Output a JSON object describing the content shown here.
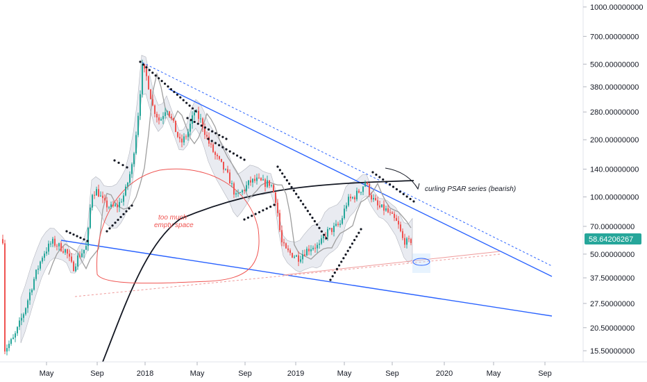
{
  "chart_data": {
    "type": "candlestick",
    "y_scale": "log",
    "ylim": [
      13.5,
      1100
    ],
    "price_axis": {
      "ticks": [
        1000,
        700,
        500,
        380,
        280,
        200,
        140,
        100,
        70,
        50,
        37.5,
        27.5,
        20.5,
        15.5
      ],
      "labels": [
        "1000.00000000",
        "700.00000000",
        "500.00000000",
        "380.00000000",
        "280.00000000",
        "200.00000000",
        "140.00000000",
        "100.00000000",
        "70.00000000",
        "50.00000000",
        "37.50000000",
        "27.50000000",
        "20.50000000",
        "15.50000000"
      ]
    },
    "time_axis": {
      "labels": [
        "May",
        "Sep",
        "2018",
        "May",
        "Sep",
        "2019",
        "May",
        "Sep",
        "2020",
        "May",
        "Sep"
      ]
    },
    "current_price": {
      "value": 58.64206267,
      "label": "58.64206267",
      "color": "#26a69a"
    },
    "annotations": [
      {
        "text": "too much",
        "color": "#ef5350"
      },
      {
        "text": "empty space",
        "color": "#ef5350"
      },
      {
        "text": "curling PSAR series (bearish)",
        "color": "#131722"
      }
    ],
    "colors": {
      "up": "#26a69a",
      "down": "#ef5350",
      "trendline": "#2962ff",
      "bollinger_fill": "#e0e3eb",
      "ma_long": "#131722",
      "ma_mid": "#9e9e9e",
      "psar": "#131722"
    }
  }
}
